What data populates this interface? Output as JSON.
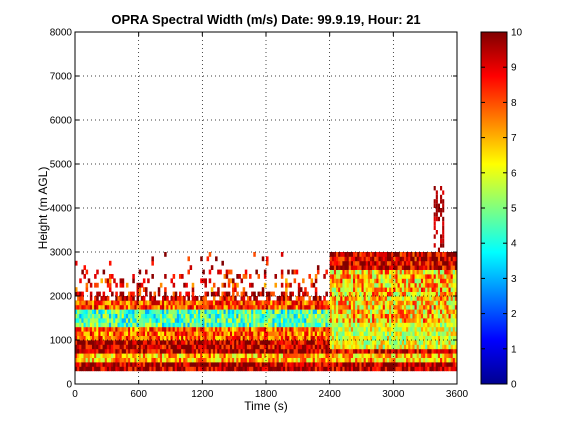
{
  "chart_data": {
    "type": "heatmap",
    "title": "OPRA Spectral Width (m/s)  Date: 99.9.19, Hour: 21",
    "xlabel": "Time (s)",
    "ylabel": "Height (m AGL)",
    "xlim": [
      0,
      3600
    ],
    "ylim": [
      0,
      8000
    ],
    "xticks": [
      0,
      600,
      1200,
      1800,
      2400,
      3000,
      3600
    ],
    "yticks": [
      0,
      1000,
      2000,
      3000,
      4000,
      5000,
      6000,
      7000,
      8000
    ],
    "xtick_labels": [
      "0",
      "600",
      "1200",
      "1800",
      "2400",
      "3000",
      "3600"
    ],
    "ytick_labels": [
      "0",
      "1000",
      "2000",
      "3000",
      "4000",
      "5000",
      "6000",
      "7000",
      "8000"
    ],
    "grid": true,
    "colorbar": {
      "colormap": "jet",
      "clim": [
        0,
        10
      ],
      "ticks": [
        0,
        1,
        2,
        3,
        4,
        5,
        6,
        7,
        8,
        9,
        10
      ],
      "tick_labels": [
        "0",
        "1",
        "2",
        "3",
        "4",
        "5",
        "6",
        "7",
        "8",
        "9",
        "10"
      ]
    },
    "layers": [
      {
        "height_range": [
          300,
          500
        ],
        "value": 9.5
      },
      {
        "height_range": [
          500,
          700
        ],
        "value": 7.0
      },
      {
        "height_range": [
          700,
          1000
        ],
        "value": 9.3
      },
      {
        "height_range": [
          1000,
          1300
        ],
        "value": 7.8
      },
      {
        "height_range": [
          1300,
          1650
        ],
        "value": 4.5
      },
      {
        "height_range": [
          1650,
          1850
        ],
        "value": 8.0
      },
      {
        "height_range": [
          1850,
          2100
        ],
        "value": 9.0
      },
      {
        "height_range": [
          2100,
          2500
        ],
        "value": 8.5
      },
      {
        "height_range": [
          2500,
          3000
        ],
        "value": 9.2
      }
    ],
    "data_extent": {
      "time_range": [
        0,
        3600
      ],
      "height_range": [
        300,
        3000
      ],
      "late_period_time_range": [
        2400,
        3600
      ],
      "plume": {
        "time_range": [
          3380,
          3480
        ],
        "height_range": [
          3000,
          4500
        ]
      }
    }
  }
}
